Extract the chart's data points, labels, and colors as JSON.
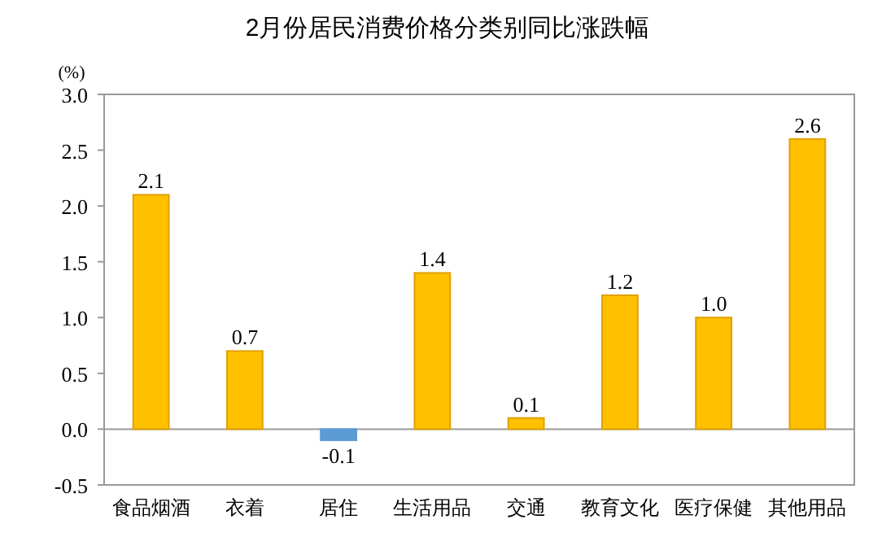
{
  "chart_data": {
    "type": "bar",
    "title": "2月份居民消费价格分类别同比涨跌幅",
    "ylabel": "(%)",
    "categories": [
      "食品烟酒",
      "衣着",
      "居住",
      "生活用品",
      "交通",
      "教育文化",
      "医疗保健",
      "其他用品"
    ],
    "values": [
      2.1,
      0.7,
      -0.1,
      1.4,
      0.1,
      1.2,
      1.0,
      2.6
    ],
    "colors": [
      "#ffc000",
      "#ffc000",
      "#5b9bd5",
      "#ffc000",
      "#ffc000",
      "#ffc000",
      "#ffc000",
      "#ffc000"
    ],
    "value_labels": [
      "2.1",
      "0.7",
      "-0.1",
      "1.4",
      "0.1",
      "1.2",
      "1.0",
      "2.6"
    ],
    "yticks": [
      {
        "value": -0.5,
        "label": "-0.5"
      },
      {
        "value": 0,
        "label": "0.0"
      },
      {
        "value": 0.5,
        "label": "0.5"
      },
      {
        "value": 1,
        "label": "1.0"
      },
      {
        "value": 1.5,
        "label": "1.5"
      },
      {
        "value": 2,
        "label": "2.0"
      },
      {
        "value": 2.5,
        "label": "2.5"
      },
      {
        "value": 3,
        "label": "3.0"
      }
    ],
    "ylim": [
      -0.5,
      3.0
    ]
  }
}
